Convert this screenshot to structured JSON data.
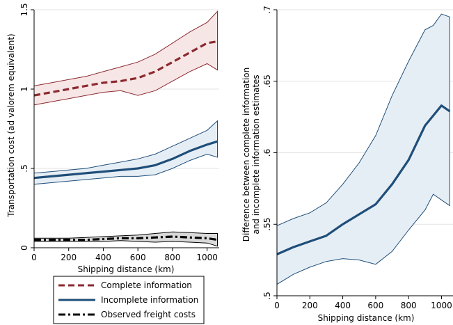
{
  "chart_data": [
    {
      "type": "line",
      "xlabel": "Shipping distance (km)",
      "ylabel": "Transportation cost (ad valorem equivalent)",
      "xlim": [
        0,
        1070
      ],
      "ylim": [
        0,
        1.5
      ],
      "xticks": [
        0,
        200,
        400,
        600,
        800,
        1000
      ],
      "xtick_labels": [
        "0",
        "200",
        "400",
        "600",
        "800",
        "1000"
      ],
      "yticks": [
        0,
        0.5,
        1,
        1.5
      ],
      "ytick_labels": [
        "0",
        ".5",
        "1",
        "1.5"
      ],
      "grid": true,
      "legend": {
        "placement": "bottom",
        "entries": [
          "Complete information",
          "Incomplete information",
          "Observed freight costs"
        ]
      },
      "series": [
        {
          "name": "Complete information",
          "style": "dashed",
          "color": "#8b2a30",
          "band_color": "#f7e6e6",
          "x": [
            0,
            100,
            200,
            300,
            400,
            500,
            600,
            700,
            800,
            900,
            1000,
            1060
          ],
          "y": [
            0.96,
            0.98,
            1.0,
            1.02,
            1.04,
            1.05,
            1.07,
            1.11,
            1.17,
            1.23,
            1.29,
            1.3
          ],
          "upper": [
            1.02,
            1.04,
            1.06,
            1.08,
            1.11,
            1.14,
            1.17,
            1.22,
            1.29,
            1.36,
            1.42,
            1.49
          ],
          "lower": [
            0.9,
            0.92,
            0.94,
            0.96,
            0.98,
            0.99,
            0.96,
            0.99,
            1.05,
            1.11,
            1.16,
            1.12
          ]
        },
        {
          "name": "Incomplete information",
          "style": "solid",
          "color": "#1f4e79",
          "band_color": "#e6eef5",
          "x": [
            0,
            100,
            200,
            300,
            400,
            500,
            600,
            700,
            800,
            900,
            1000,
            1060
          ],
          "y": [
            0.44,
            0.45,
            0.46,
            0.47,
            0.48,
            0.49,
            0.5,
            0.52,
            0.56,
            0.61,
            0.65,
            0.67
          ],
          "upper": [
            0.47,
            0.48,
            0.49,
            0.5,
            0.52,
            0.54,
            0.56,
            0.59,
            0.64,
            0.69,
            0.74,
            0.8
          ],
          "lower": [
            0.4,
            0.41,
            0.42,
            0.43,
            0.44,
            0.45,
            0.45,
            0.46,
            0.5,
            0.55,
            0.59,
            0.57
          ]
        },
        {
          "name": "Observed freight costs",
          "style": "dash-dot",
          "color": "#000000",
          "band_color": "#d9d9d9",
          "x": [
            0,
            100,
            200,
            300,
            400,
            500,
            600,
            700,
            800,
            900,
            1000,
            1060
          ],
          "y": [
            0.05,
            0.05,
            0.05,
            0.05,
            0.055,
            0.06,
            0.06,
            0.065,
            0.07,
            0.065,
            0.06,
            0.05
          ],
          "upper": [
            0.06,
            0.06,
            0.06,
            0.065,
            0.07,
            0.075,
            0.08,
            0.09,
            0.1,
            0.095,
            0.09,
            0.09
          ],
          "lower": [
            0.04,
            0.04,
            0.04,
            0.04,
            0.04,
            0.045,
            0.04,
            0.035,
            0.04,
            0.035,
            0.03,
            0.01
          ]
        }
      ]
    },
    {
      "type": "line",
      "xlabel": "Shipping distance (km)",
      "ylabel": "Difference between complete information and incomplete information estimates",
      "ylabel_lines": [
        "Difference between complete information",
        "and incomplete information estimates"
      ],
      "xlim": [
        0,
        1070
      ],
      "ylim": [
        0.5,
        0.7
      ],
      "xticks": [
        0,
        200,
        400,
        600,
        800,
        1000
      ],
      "xtick_labels": [
        "0",
        "200",
        "400",
        "600",
        "800",
        "1000"
      ],
      "yticks": [
        0.5,
        0.55,
        0.6,
        0.65,
        0.7
      ],
      "ytick_labels": [
        ".5",
        ".55",
        ".6",
        ".65",
        ".7"
      ],
      "grid": true,
      "series": [
        {
          "style": "solid",
          "color": "#1f4e79",
          "band_color": "#e6eef5",
          "x": [
            0,
            100,
            200,
            300,
            400,
            500,
            600,
            700,
            800,
            900,
            950,
            1000,
            1050
          ],
          "y": [
            0.529,
            0.534,
            0.538,
            0.542,
            0.55,
            0.557,
            0.564,
            0.578,
            0.595,
            0.619,
            0.626,
            0.633,
            0.629
          ],
          "upper": [
            0.549,
            0.554,
            0.558,
            0.565,
            0.578,
            0.593,
            0.612,
            0.64,
            0.664,
            0.686,
            0.689,
            0.697,
            0.695
          ],
          "lower": [
            0.508,
            0.515,
            0.52,
            0.524,
            0.526,
            0.525,
            0.522,
            0.531,
            0.546,
            0.56,
            0.571,
            0.567,
            0.563
          ]
        }
      ]
    }
  ]
}
